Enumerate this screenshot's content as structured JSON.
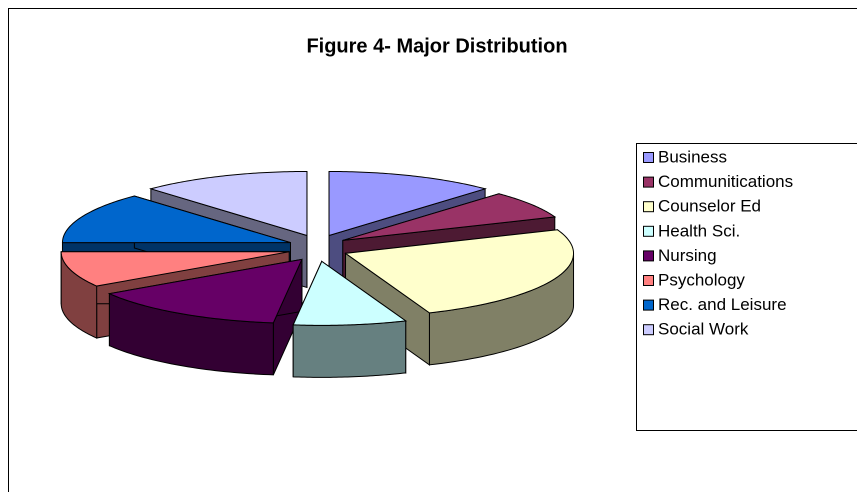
{
  "chart_data": {
    "type": "pie",
    "title": "Figure 4- Major Distribution",
    "categories": [
      "Business",
      "Communitications",
      "Counselor Ed",
      "Health Sci.",
      "Nursing",
      "Psychology",
      "Rec. and Leisure",
      "Social Work"
    ],
    "values": [
      12,
      7,
      25,
      8,
      14,
      9,
      13,
      12
    ],
    "colors": [
      "#9999ff",
      "#993366",
      "#ffffcc",
      "#ccffff",
      "#660066",
      "#ff8080",
      "#0066cc",
      "#ccccff"
    ],
    "legend": "right"
  }
}
